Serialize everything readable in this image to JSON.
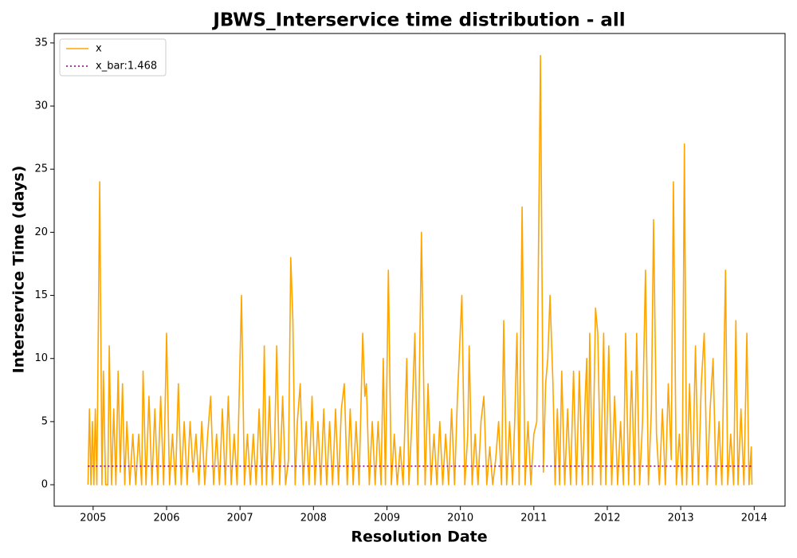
{
  "chart_data": {
    "type": "line",
    "title": "JBWS_Interservice time distribution - all",
    "x_label": "Resolution Date",
    "y_label": "Interservice Time (days)",
    "xlim": [
      2004.47,
      2014.42
    ],
    "xticks": [
      2005,
      2006,
      2007,
      2008,
      2009,
      2010,
      2011,
      2012,
      2013,
      2014
    ],
    "ylim": [
      -1.7,
      35.75
    ],
    "yticks": [
      0,
      5,
      10,
      15,
      20,
      25,
      30,
      35
    ],
    "legend": "upper left",
    "grid": false,
    "series": [
      {
        "name": "x",
        "color": "#ffa500",
        "style": "solid",
        "x": [
          2004.93,
          2004.95,
          2004.97,
          2004.99,
          2005.01,
          2005.03,
          2005.05,
          2005.09,
          2005.12,
          2005.14,
          2005.17,
          2005.2,
          2005.22,
          2005.25,
          2005.28,
          2005.31,
          2005.34,
          2005.37,
          2005.4,
          2005.43,
          2005.46,
          2005.5,
          2005.54,
          2005.58,
          2005.62,
          2005.66,
          2005.68,
          2005.72,
          2005.76,
          2005.8,
          2005.84,
          2005.88,
          2005.92,
          2005.96,
          2006.0,
          2006.04,
          2006.08,
          2006.12,
          2006.16,
          2006.2,
          2006.24,
          2006.28,
          2006.32,
          2006.36,
          2006.4,
          2006.44,
          2006.48,
          2006.52,
          2006.56,
          2006.6,
          2006.64,
          2006.68,
          2006.72,
          2006.76,
          2006.8,
          2006.84,
          2006.88,
          2006.92,
          2006.96,
          2007.02,
          2007.06,
          2007.1,
          2007.14,
          2007.18,
          2007.22,
          2007.26,
          2007.3,
          2007.33,
          2007.36,
          2007.4,
          2007.44,
          2007.47,
          2007.5,
          2007.54,
          2007.58,
          2007.62,
          2007.66,
          2007.69,
          2007.72,
          2007.75,
          2007.78,
          2007.82,
          2007.86,
          2007.9,
          2007.94,
          2007.98,
          2008.02,
          2008.06,
          2008.1,
          2008.14,
          2008.18,
          2008.22,
          2008.26,
          2008.3,
          2008.34,
          2008.38,
          2008.42,
          2008.46,
          2008.5,
          2008.54,
          2008.58,
          2008.62,
          2008.67,
          2008.7,
          2008.72,
          2008.76,
          2008.8,
          2008.84,
          2008.88,
          2008.92,
          2008.95,
          2008.98,
          2009.02,
          2009.06,
          2009.1,
          2009.14,
          2009.18,
          2009.22,
          2009.27,
          2009.3,
          2009.34,
          2009.38,
          2009.42,
          2009.47,
          2009.5,
          2009.52,
          2009.56,
          2009.6,
          2009.64,
          2009.68,
          2009.72,
          2009.76,
          2009.8,
          2009.84,
          2009.88,
          2009.92,
          2009.96,
          2010.02,
          2010.06,
          2010.1,
          2010.12,
          2010.16,
          2010.2,
          2010.24,
          2010.28,
          2010.32,
          2010.36,
          2010.4,
          2010.44,
          2010.48,
          2010.52,
          2010.56,
          2010.59,
          2010.63,
          2010.67,
          2010.71,
          2010.74,
          2010.77,
          2010.8,
          2010.84,
          2010.88,
          2010.92,
          2010.96,
          2011.0,
          2011.04,
          2011.09,
          2011.13,
          2011.16,
          2011.19,
          2011.22,
          2011.26,
          2011.29,
          2011.32,
          2011.35,
          2011.38,
          2011.42,
          2011.46,
          2011.5,
          2011.54,
          2011.58,
          2011.62,
          2011.66,
          2011.7,
          2011.72,
          2011.74,
          2011.76,
          2011.8,
          2011.84,
          2011.87,
          2011.91,
          2011.95,
          2011.98,
          2012.02,
          2012.06,
          2012.1,
          2012.14,
          2012.18,
          2012.22,
          2012.25,
          2012.29,
          2012.33,
          2012.37,
          2012.4,
          2012.44,
          2012.48,
          2012.52,
          2012.56,
          2012.6,
          2012.63,
          2012.67,
          2012.71,
          2012.75,
          2012.79,
          2012.83,
          2012.87,
          2012.9,
          2012.94,
          2012.98,
          2013.02,
          2013.05,
          2013.08,
          2013.12,
          2013.16,
          2013.2,
          2013.24,
          2013.28,
          2013.32,
          2013.36,
          2013.4,
          2013.44,
          2013.48,
          2013.52,
          2013.56,
          2013.61,
          2013.64,
          2013.68,
          2013.72,
          2013.75,
          2013.78,
          2013.82,
          2013.86,
          2013.9,
          2013.93,
          2013.96,
          2013.97
        ],
        "values": [
          0,
          6,
          0,
          5,
          0,
          6,
          0,
          24,
          0,
          9,
          0,
          0,
          11,
          0,
          6,
          0,
          9,
          1,
          8,
          0,
          5,
          0,
          4,
          0,
          4,
          0,
          9,
          0,
          7,
          0,
          6,
          0,
          7,
          0,
          12,
          0,
          4,
          0,
          8,
          0,
          5,
          0,
          5,
          1,
          4,
          0,
          5,
          0,
          4,
          7,
          0,
          4,
          0,
          6,
          0,
          7,
          0,
          4,
          0,
          15,
          0,
          4,
          0,
          4,
          0,
          6,
          0,
          11,
          0,
          7,
          0,
          3,
          11,
          0,
          7,
          0,
          2,
          18,
          13,
          0,
          5,
          8,
          0,
          5,
          0,
          7,
          0,
          5,
          0,
          6,
          0,
          5,
          0,
          6,
          0,
          6,
          8,
          0,
          6,
          0,
          5,
          0,
          12,
          7,
          8,
          0,
          5,
          0,
          5,
          0,
          10,
          0,
          17,
          0,
          4,
          0,
          3,
          0,
          10,
          0,
          5,
          12,
          0,
          20,
          8,
          0,
          8,
          0,
          4,
          0,
          5,
          0,
          4,
          0,
          6,
          0,
          7,
          15,
          0,
          4,
          11,
          0,
          4,
          0,
          5,
          7,
          0,
          3,
          0,
          2,
          5,
          0,
          13,
          0,
          5,
          0,
          5,
          12,
          0,
          22,
          0,
          5,
          0,
          4,
          5,
          34,
          1,
          8,
          10,
          15,
          8,
          0,
          6,
          0,
          9,
          0,
          6,
          0,
          9,
          0,
          9,
          0,
          7,
          10,
          0,
          12,
          0,
          14,
          12,
          0,
          12,
          0,
          11,
          0,
          7,
          0,
          5,
          0,
          12,
          0,
          9,
          0,
          12,
          0,
          5,
          17,
          0,
          6,
          21,
          4,
          0,
          6,
          0,
          8,
          2,
          24,
          0,
          4,
          0,
          27,
          0,
          8,
          0,
          11,
          0,
          8,
          12,
          0,
          6,
          10,
          0,
          5,
          0,
          17,
          0,
          4,
          0,
          13,
          0,
          6,
          0,
          12,
          0,
          3,
          0
        ]
      },
      {
        "name": "x_bar:1.468",
        "color": "#800080",
        "style": "dotted",
        "x": [
          2004.93,
          2013.97
        ],
        "values": [
          1.468,
          1.468
        ]
      }
    ]
  }
}
